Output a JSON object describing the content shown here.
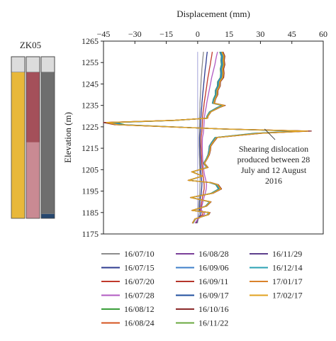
{
  "borehole": {
    "label": "ZK05",
    "columns": [
      {
        "top_color": "#dcdcdc",
        "segments": [
          {
            "color": "#e8b83a",
            "from": 0,
            "to": 1
          }
        ]
      },
      {
        "top_color": "#dcdcdc",
        "segments": [
          {
            "color": "#a4505a",
            "from": 0,
            "to": 0.48
          },
          {
            "color": "#c98a93",
            "from": 0.48,
            "to": 1
          }
        ]
      },
      {
        "top_color": "#dcdcdc",
        "segments": [
          {
            "color": "#6e6e6e",
            "from": 0,
            "to": 0.97
          },
          {
            "color": "#26476e",
            "from": 0.97,
            "to": 1
          }
        ]
      }
    ]
  },
  "chart_data": {
    "type": "line",
    "title": "",
    "xlabel": "Displacement (mm)",
    "ylabel": "Elevation (m)",
    "xlim": [
      -45,
      60
    ],
    "ylim": [
      1175,
      1265
    ],
    "xticks": [
      "−45",
      "−30",
      "−15",
      "0",
      "15",
      "30",
      "45",
      "60"
    ],
    "xtick_values": [
      -45,
      -30,
      -15,
      0,
      15,
      30,
      45,
      60
    ],
    "yticks": [
      "1175",
      "1185",
      "1195",
      "1205",
      "1215",
      "1225",
      "1235",
      "1245",
      "1255",
      "1265"
    ],
    "ytick_values": [
      1175,
      1185,
      1195,
      1205,
      1215,
      1225,
      1235,
      1245,
      1255,
      1265
    ],
    "x_axis_position": "top",
    "grid": false,
    "legend_position": "bottom",
    "annotation": {
      "lines": [
        "Shearing dislocation",
        "produced between 28",
        "July and 12 August",
        "2016"
      ],
      "arrow_from": [
        37,
        1219
      ],
      "arrow_to": [
        32,
        1224
      ]
    },
    "elevation": [
      1180,
      1182,
      1184,
      1185,
      1186,
      1188,
      1190,
      1192,
      1194,
      1196,
      1198,
      1199,
      1200,
      1202,
      1204,
      1206,
      1208,
      1210,
      1212,
      1214,
      1216,
      1218,
      1220,
      1222,
      1223,
      1224,
      1226,
      1227,
      1228,
      1229,
      1230,
      1232,
      1234,
      1235,
      1236,
      1238,
      1240,
      1242,
      1244,
      1246,
      1248,
      1250,
      1252,
      1254,
      1256,
      1258,
      1260
    ],
    "series": [
      {
        "name": "16/07/10",
        "color": "#8c8c8c",
        "values": [
          -0.2,
          0.3,
          0.6,
          0.8,
          0.4,
          0.5,
          0.6,
          0.8,
          1.0,
          1.1,
          1.1,
          1.2,
          1.2,
          1.1,
          1.0,
          1.0,
          0.9,
          0.9,
          0.8,
          0.8,
          0.7,
          0.7,
          0.7,
          0.8,
          0.8,
          0.8,
          0.9,
          0.9,
          0.9,
          0.9,
          0.9,
          1.0,
          1.1,
          1.1,
          1.1,
          1.2,
          1.3,
          1.4,
          1.5,
          1.6,
          1.7,
          1.9,
          2.0,
          2.2,
          2.4,
          2.6,
          2.8
        ]
      },
      {
        "name": "16/07/15",
        "color": "#2e3b8f",
        "values": [
          -0.6,
          0.1,
          1.4,
          1.6,
          0.9,
          1.0,
          1.1,
          1.3,
          1.7,
          1.9,
          2.0,
          2.0,
          1.9,
          1.7,
          1.5,
          1.5,
          1.4,
          1.3,
          1.2,
          1.1,
          1.1,
          1.0,
          1.0,
          1.2,
          1.3,
          1.4,
          1.4,
          1.5,
          1.5,
          1.5,
          1.6,
          1.7,
          1.9,
          2.0,
          2.0,
          2.2,
          2.4,
          2.6,
          2.8,
          3.0,
          3.2,
          3.4,
          3.6,
          3.9,
          4.1,
          4.3,
          4.6
        ]
      },
      {
        "name": "16/07/20",
        "color": "#c0392b",
        "values": [
          -1.0,
          0.0,
          2.3,
          2.6,
          1.4,
          1.6,
          1.9,
          2.3,
          2.7,
          3.1,
          3.1,
          3.0,
          2.9,
          2.6,
          2.3,
          2.2,
          2.0,
          1.9,
          1.8,
          1.7,
          1.6,
          1.6,
          1.6,
          1.9,
          2.0,
          2.1,
          2.2,
          2.3,
          2.3,
          2.3,
          2.4,
          2.6,
          2.9,
          3.0,
          3.1,
          3.4,
          3.7,
          4.0,
          4.3,
          4.6,
          4.9,
          5.3,
          5.6,
          6.0,
          6.3,
          6.7,
          7.0
        ]
      },
      {
        "name": "16/07/28",
        "color": "#b15ac2",
        "values": [
          -1.3,
          0.2,
          3.1,
          3.4,
          1.7,
          2.0,
          2.5,
          3.0,
          3.6,
          4.1,
          4.2,
          4.1,
          3.9,
          3.4,
          3.0,
          2.8,
          2.6,
          2.4,
          2.3,
          2.2,
          2.2,
          2.2,
          2.3,
          2.7,
          2.8,
          2.9,
          3.0,
          3.1,
          3.1,
          3.1,
          3.3,
          3.6,
          4.0,
          4.2,
          4.3,
          4.7,
          5.1,
          5.5,
          5.9,
          6.3,
          6.7,
          7.2,
          7.7,
          8.2,
          8.6,
          9.0,
          9.5
        ]
      },
      {
        "name": "16/08/12",
        "color": "#3a9e3a",
        "values": [
          -2.2,
          -1.0,
          4.6,
          5.2,
          -2.4,
          3.7,
          5.6,
          -3.0,
          6.4,
          9.9,
          8.6,
          5.6,
          -4.0,
          2.1,
          -2.5,
          4.3,
          2.8,
          4.0,
          4.9,
          5.3,
          5.5,
          6.8,
          8.2,
          26.8,
          47.4,
          10.6,
          -34.7,
          -39.3,
          -10.4,
          4.2,
          4.4,
          5.6,
          9.2,
          11.5,
          7.0,
          7.5,
          8.4,
          8.4,
          9.4,
          9.5,
          10.8,
          11.0,
          10.8,
          11.3,
          11.1,
          11.3,
          10.5
        ]
      },
      {
        "name": "16/08/24",
        "color": "#d4531f",
        "values": [
          -2.4,
          -1.2,
          5.0,
          5.6,
          -2.6,
          4.0,
          6.1,
          -3.3,
          7.0,
          10.8,
          9.4,
          6.1,
          -4.4,
          2.3,
          -2.7,
          4.7,
          3.1,
          4.4,
          5.3,
          5.8,
          6.0,
          7.4,
          8.9,
          29.3,
          51.6,
          11.6,
          -37.8,
          -42.8,
          -11.4,
          4.6,
          4.8,
          6.1,
          10.0,
          12.5,
          7.6,
          8.2,
          9.1,
          9.2,
          10.3,
          10.4,
          11.8,
          12.0,
          11.8,
          12.3,
          12.1,
          12.3,
          11.5
        ]
      },
      {
        "name": "16/08/28",
        "color": "#7a3f99",
        "values": [
          -2.3,
          -1.1,
          4.8,
          5.4,
          -2.5,
          3.9,
          5.9,
          -3.2,
          6.7,
          10.3,
          9.0,
          5.8,
          -4.2,
          2.2,
          -2.6,
          4.5,
          3.0,
          4.2,
          5.1,
          5.5,
          5.7,
          7.1,
          8.5,
          28.1,
          49.5,
          11.1,
          -36.3,
          -41.1,
          -10.9,
          4.4,
          4.6,
          5.9,
          9.6,
          12.0,
          7.3,
          7.9,
          8.8,
          8.8,
          9.8,
          9.9,
          11.3,
          11.5,
          11.3,
          11.8,
          11.6,
          11.8,
          11.0
        ]
      },
      {
        "name": "16/09/06",
        "color": "#3d7fc9",
        "values": [
          -2.2,
          -1.0,
          4.7,
          5.3,
          -2.4,
          3.8,
          5.7,
          -3.1,
          6.6,
          10.1,
          8.8,
          5.7,
          -4.1,
          2.1,
          -2.5,
          4.4,
          2.9,
          4.1,
          5.0,
          5.4,
          5.6,
          6.9,
          8.4,
          27.5,
          48.5,
          10.8,
          -35.6,
          -40.3,
          -10.7,
          4.3,
          4.5,
          5.8,
          9.4,
          11.8,
          7.1,
          7.7,
          8.6,
          8.6,
          9.6,
          9.7,
          11.0,
          11.2,
          11.0,
          11.6,
          11.3,
          11.5,
          10.8
        ]
      },
      {
        "name": "16/09/11",
        "color": "#b5352b",
        "values": [
          -2.5,
          -1.3,
          5.2,
          5.8,
          -2.7,
          4.2,
          6.3,
          -3.4,
          7.2,
          11.2,
          9.7,
          6.3,
          -4.5,
          2.4,
          -2.8,
          4.9,
          3.2,
          4.5,
          5.5,
          6.0,
          6.2,
          7.6,
          9.2,
          30.2,
          53.2,
          11.9,
          -38.9,
          -44.1,
          -11.7,
          4.7,
          4.9,
          6.3,
          10.3,
          12.9,
          7.8,
          8.4,
          9.4,
          9.5,
          10.6,
          10.7,
          12.1,
          12.4,
          12.1,
          12.7,
          12.5,
          12.7,
          11.8
        ]
      },
      {
        "name": "16/09/17",
        "color": "#1f4e9e",
        "values": [
          -2.3,
          -1.1,
          4.9,
          5.5,
          -2.5,
          3.9,
          6.0,
          -3.2,
          6.8,
          10.5,
          9.1,
          5.9,
          -4.3,
          2.2,
          -2.6,
          4.6,
          3.0,
          4.3,
          5.2,
          5.6,
          5.8,
          7.2,
          8.7,
          28.6,
          50.4,
          11.3,
          -36.9,
          -41.8,
          -11.1,
          4.5,
          4.7,
          6.0,
          9.8,
          12.2,
          7.4,
          8.0,
          8.9,
          9.0,
          10.0,
          10.1,
          11.5,
          11.7,
          11.5,
          12.0,
          11.8,
          12.0,
          11.2
        ]
      },
      {
        "name": "16/10/16",
        "color": "#8b2a2a",
        "values": [
          -2.6,
          -1.3,
          5.3,
          5.9,
          -2.8,
          4.3,
          6.4,
          -3.5,
          7.4,
          11.4,
          9.9,
          6.4,
          -4.6,
          2.4,
          -2.9,
          5.0,
          3.3,
          4.6,
          5.6,
          6.1,
          6.3,
          7.8,
          9.4,
          30.8,
          54.3,
          12.2,
          -39.7,
          -45.0,
          -12.0,
          4.8,
          5.0,
          6.4,
          10.5,
          13.2,
          8.0,
          8.6,
          9.6,
          9.7,
          10.8,
          10.9,
          12.4,
          12.6,
          12.4,
          13.0,
          12.7,
          13.0,
          12.1
        ]
      },
      {
        "name": "16/11/22",
        "color": "#6aa83f",
        "values": [
          -2.4,
          -1.1,
          5.0,
          5.6,
          -2.6,
          4.0,
          6.1,
          -3.3,
          7.0,
          10.8,
          9.4,
          6.1,
          -4.4,
          2.3,
          -2.7,
          4.7,
          3.1,
          4.4,
          5.3,
          5.8,
          6.0,
          7.4,
          8.9,
          29.3,
          51.6,
          11.6,
          -37.8,
          -42.8,
          -11.4,
          4.6,
          4.8,
          6.1,
          10.0,
          12.5,
          7.6,
          8.2,
          9.1,
          9.2,
          10.3,
          10.4,
          11.8,
          12.0,
          11.8,
          12.3,
          12.1,
          12.3,
          11.5
        ]
      },
      {
        "name": "16/11/29",
        "color": "#5d3f8c",
        "values": [
          -2.5,
          -1.2,
          5.1,
          5.7,
          -2.6,
          4.1,
          6.2,
          -3.4,
          7.1,
          11.0,
          9.6,
          6.2,
          -4.5,
          2.3,
          -2.8,
          4.8,
          3.2,
          4.5,
          5.4,
          5.9,
          6.1,
          7.5,
          9.1,
          29.7,
          52.5,
          11.8,
          -38.5,
          -43.6,
          -11.6,
          4.7,
          4.9,
          6.2,
          10.2,
          12.8,
          7.7,
          8.3,
          9.3,
          9.4,
          10.5,
          10.6,
          12.0,
          12.2,
          12.0,
          12.6,
          12.3,
          12.6,
          11.7
        ]
      },
      {
        "name": "16/12/14",
        "color": "#2aa1b3",
        "values": [
          -2.3,
          -1.1,
          4.8,
          5.4,
          -2.5,
          3.9,
          5.9,
          -3.2,
          6.7,
          10.4,
          9.0,
          5.9,
          -4.2,
          2.2,
          -2.6,
          4.5,
          3.0,
          4.2,
          5.1,
          5.6,
          5.8,
          7.1,
          8.6,
          28.3,
          49.9,
          11.2,
          -36.6,
          -41.5,
          -11.0,
          4.4,
          4.6,
          5.9,
          9.7,
          12.1,
          7.3,
          7.9,
          8.8,
          8.9,
          9.9,
          10.0,
          11.4,
          11.6,
          11.4,
          11.9,
          11.7,
          11.9,
          11.1
        ]
      },
      {
        "name": "17/01/17",
        "color": "#d9822b",
        "values": [
          -2.4,
          -1.2,
          5.0,
          5.6,
          -2.6,
          4.0,
          6.1,
          -3.3,
          7.0,
          10.9,
          9.4,
          6.1,
          -4.4,
          2.3,
          -2.7,
          4.7,
          3.1,
          4.4,
          5.3,
          5.8,
          6.0,
          7.4,
          9.0,
          29.4,
          51.8,
          11.6,
          -37.9,
          -43.0,
          -11.4,
          4.6,
          4.8,
          6.2,
          10.1,
          12.6,
          7.6,
          8.2,
          9.2,
          9.2,
          10.3,
          10.4,
          11.8,
          12.0,
          11.8,
          12.4,
          12.1,
          12.4,
          11.5
        ]
      },
      {
        "name": "17/02/17",
        "color": "#e0a21f",
        "values": [
          -2.5,
          -1.2,
          5.1,
          5.7,
          -2.7,
          4.1,
          6.2,
          -3.4,
          7.1,
          11.1,
          9.6,
          6.2,
          -4.5,
          2.4,
          -2.8,
          4.8,
          3.2,
          4.5,
          5.4,
          5.9,
          6.1,
          7.6,
          9.1,
          29.9,
          52.7,
          11.8,
          -38.6,
          -43.7,
          -11.6,
          4.7,
          4.9,
          6.3,
          10.2,
          12.8,
          7.7,
          8.4,
          9.3,
          9.4,
          10.5,
          10.6,
          12.0,
          12.3,
          12.0,
          12.6,
          12.4,
          12.6,
          11.7
        ]
      }
    ]
  }
}
